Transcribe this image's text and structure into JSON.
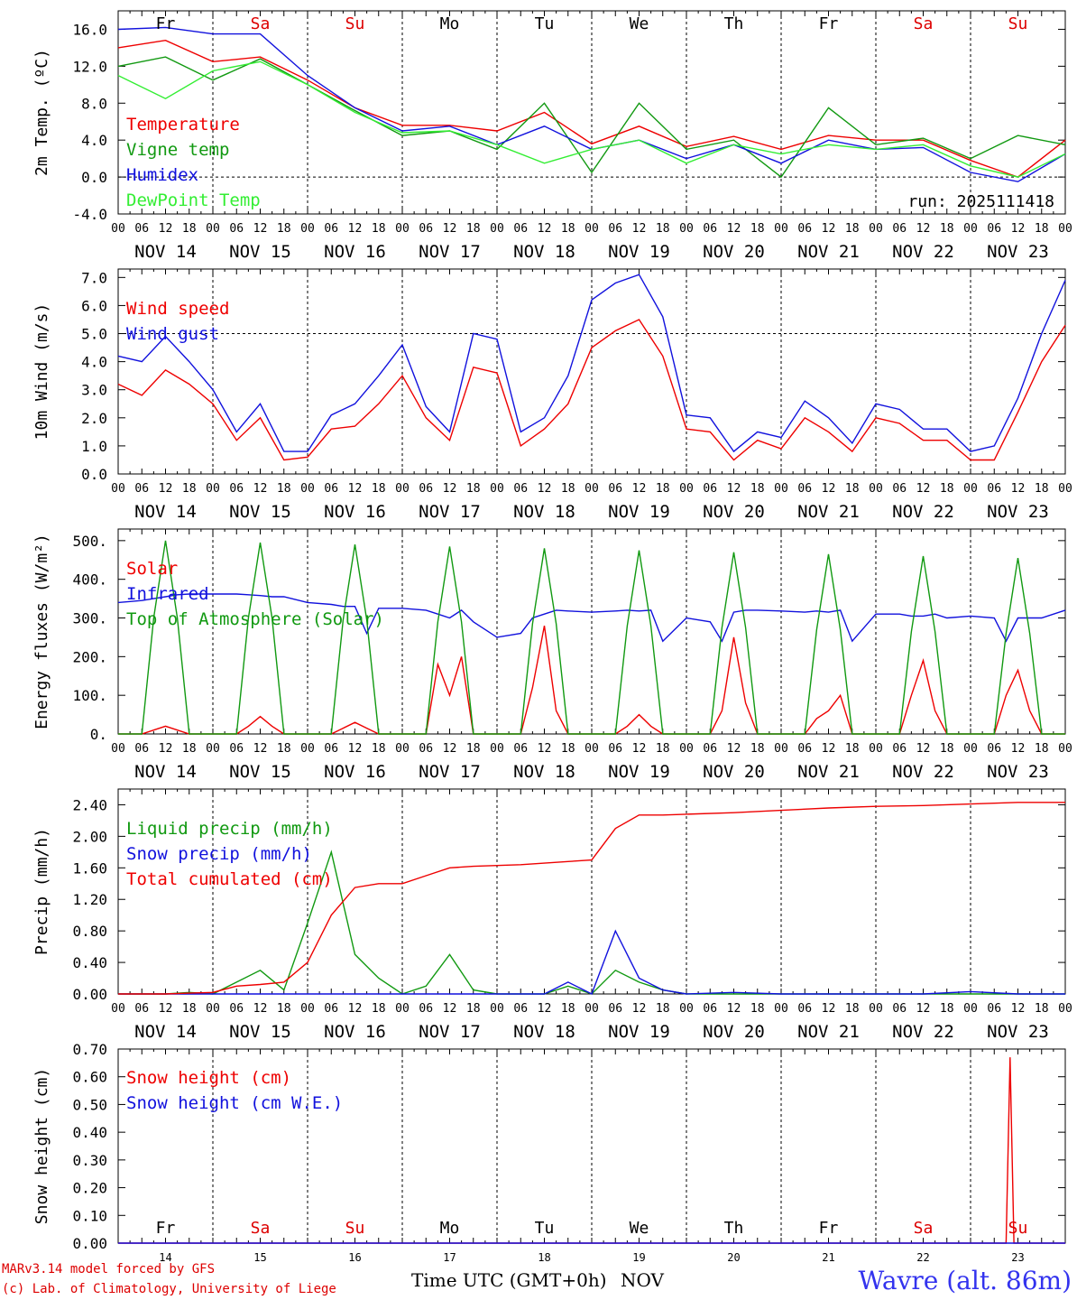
{
  "meta": {
    "run_label": "run: 2025111418",
    "station": "Wavre (alt. 86m)",
    "model_line": "MARv3.14 model forced by GFS",
    "lab_line": "(c) Lab. of Climatology, University of Liege",
    "time_label": "Time UTC (GMT+0h)",
    "month_label": "NOV",
    "hour_ticks": [
      "00",
      "06",
      "12",
      "18"
    ],
    "last_hour_tick": "00"
  },
  "days": [
    {
      "weekday": "Fr",
      "date": "NOV 14",
      "num": "14",
      "weekend": false
    },
    {
      "weekday": "Sa",
      "date": "NOV 15",
      "num": "15",
      "weekend": true
    },
    {
      "weekday": "Su",
      "date": "NOV 16",
      "num": "16",
      "weekend": true
    },
    {
      "weekday": "Mo",
      "date": "NOV 17",
      "num": "17",
      "weekend": false
    },
    {
      "weekday": "Tu",
      "date": "NOV 18",
      "num": "18",
      "weekend": false
    },
    {
      "weekday": "We",
      "date": "NOV 19",
      "num": "19",
      "weekend": false
    },
    {
      "weekday": "Th",
      "date": "NOV 20",
      "num": "20",
      "weekend": false
    },
    {
      "weekday": "Fr",
      "date": "NOV 21",
      "num": "21",
      "weekend": false
    },
    {
      "weekday": "Sa",
      "date": "NOV 22",
      "num": "22",
      "weekend": true
    },
    {
      "weekday": "Su",
      "date": "NOV 23",
      "num": "23",
      "weekend": true
    }
  ],
  "colors": {
    "weekday": "#000000",
    "weekend": "#dd0000",
    "red": "#ee0000",
    "green": "#119911",
    "blue": "#1111dd",
    "lightgreen": "#33ee33"
  },
  "chart_data": [
    {
      "id": "temperature",
      "type": "line",
      "ylabel": "2m Temp. (ºC)",
      "ylim": [
        -4,
        18
      ],
      "yticks": [
        "-4.0",
        "0.0",
        "4.0",
        "8.0",
        "12.0",
        "16.0"
      ],
      "ytick_values": [
        -4,
        0,
        4,
        8,
        12,
        16
      ],
      "dashed_y": 0,
      "show_weekdays": true,
      "show_run": true,
      "x_hours": [
        0,
        12,
        24,
        36,
        48,
        60,
        72,
        84,
        96,
        108,
        120,
        132,
        144,
        156,
        168,
        180,
        192,
        204,
        216,
        228,
        240
      ],
      "series": [
        {
          "name": "Temperature",
          "color": "red",
          "values": [
            14,
            14.8,
            12.5,
            13,
            10.5,
            7.5,
            5.6,
            5.6,
            5,
            7,
            3.6,
            5.5,
            3.3,
            4.4,
            3,
            4.5,
            4,
            4,
            1.8,
            0,
            4
          ]
        },
        {
          "name": "Vigne temp",
          "color": "green",
          "values": [
            12,
            13,
            10.5,
            12.8,
            10,
            7.2,
            4.5,
            5,
            3,
            8,
            0.5,
            8,
            3,
            4,
            0,
            7.5,
            3.5,
            4.2,
            2,
            4.5,
            3.5
          ]
        },
        {
          "name": "Humidex",
          "color": "blue",
          "values": [
            16,
            16.2,
            15.5,
            15.5,
            11,
            7.5,
            5,
            5.5,
            3.5,
            5.5,
            3,
            4,
            2,
            3.5,
            1.5,
            4,
            3,
            3.2,
            0.5,
            -0.5,
            2.5
          ]
        },
        {
          "name": "DewPoint Temp",
          "color": "lightgreen",
          "values": [
            11,
            8.5,
            11.5,
            12.5,
            10,
            7,
            4.8,
            5,
            3.5,
            1.5,
            3,
            4,
            1.5,
            3.5,
            2.5,
            3.5,
            3,
            3.5,
            1.2,
            0,
            2.5
          ]
        }
      ]
    },
    {
      "id": "wind",
      "type": "line",
      "ylabel": "10m Wind (m/s)",
      "ylim": [
        0,
        7.3
      ],
      "yticks": [
        "0.0",
        "1.0",
        "2.0",
        "3.0",
        "4.0",
        "5.0",
        "6.0",
        "7.0"
      ],
      "ytick_values": [
        0,
        1,
        2,
        3,
        4,
        5,
        6,
        7
      ],
      "dashed_y": 5,
      "show_weekdays": false,
      "show_run": false,
      "x_hours": [
        0,
        6,
        12,
        18,
        24,
        30,
        36,
        42,
        48,
        54,
        60,
        66,
        72,
        78,
        84,
        90,
        96,
        102,
        108,
        114,
        120,
        126,
        132,
        138,
        144,
        150,
        156,
        162,
        168,
        174,
        180,
        186,
        192,
        198,
        204,
        210,
        216,
        222,
        228,
        234,
        240
      ],
      "series": [
        {
          "name": "Wind speed",
          "color": "red",
          "values": [
            3.2,
            2.8,
            3.7,
            3.2,
            2.5,
            1.2,
            2,
            0.5,
            0.6,
            1.6,
            1.7,
            2.5,
            3.5,
            2,
            1.2,
            3.8,
            3.6,
            1,
            1.6,
            2.5,
            4.5,
            5.1,
            5.5,
            4.2,
            1.6,
            1.5,
            0.5,
            1.2,
            0.9,
            2,
            1.5,
            0.8,
            2,
            1.8,
            1.2,
            1.2,
            0.5,
            0.5,
            2.2,
            4,
            5.3
          ]
        },
        {
          "name": "Wind gust",
          "color": "blue",
          "values": [
            4.2,
            4,
            4.9,
            4,
            3,
            1.5,
            2.5,
            0.8,
            0.8,
            2.1,
            2.5,
            3.5,
            4.6,
            2.4,
            1.5,
            5,
            4.8,
            1.5,
            2,
            3.5,
            6.2,
            6.8,
            7.1,
            5.6,
            2.1,
            2,
            0.8,
            1.5,
            1.3,
            2.6,
            2,
            1.1,
            2.5,
            2.3,
            1.6,
            1.6,
            0.8,
            1,
            2.7,
            5,
            6.9
          ]
        }
      ]
    },
    {
      "id": "energy",
      "type": "line",
      "ylabel": "Energy fluxes (W/m²)",
      "ylim": [
        0,
        530
      ],
      "yticks": [
        "0.",
        "100.",
        "200.",
        "300.",
        "400.",
        "500."
      ],
      "ytick_values": [
        0,
        100,
        200,
        300,
        400,
        500
      ],
      "dashed_y": null,
      "show_weekdays": false,
      "show_run": false,
      "x_hours": [
        0,
        6,
        9,
        12,
        15,
        18,
        24,
        30,
        33,
        36,
        39,
        42,
        48,
        54,
        57,
        60,
        63,
        66,
        72,
        78,
        81,
        84,
        87,
        90,
        96,
        102,
        105,
        108,
        111,
        114,
        120,
        126,
        129,
        132,
        135,
        138,
        144,
        150,
        153,
        156,
        159,
        162,
        168,
        174,
        177,
        180,
        183,
        186,
        192,
        198,
        201,
        204,
        207,
        210,
        216,
        222,
        225,
        228,
        231,
        234,
        240
      ],
      "series": [
        {
          "name": "Solar",
          "color": "red",
          "values": [
            0,
            0,
            10,
            20,
            10,
            0,
            0,
            0,
            20,
            45,
            20,
            0,
            0,
            0,
            15,
            30,
            15,
            0,
            0,
            0,
            180,
            100,
            200,
            0,
            0,
            0,
            120,
            280,
            60,
            0,
            0,
            0,
            20,
            50,
            20,
            0,
            0,
            0,
            60,
            250,
            80,
            0,
            0,
            0,
            40,
            60,
            100,
            0,
            0,
            0,
            100,
            190,
            60,
            0,
            0,
            0,
            100,
            165,
            60,
            0,
            0
          ]
        },
        {
          "name": "Infrared",
          "color": "blue",
          "values": [
            340,
            345,
            350,
            355,
            360,
            362,
            362,
            362,
            360,
            358,
            355,
            355,
            340,
            335,
            330,
            330,
            260,
            325,
            325,
            320,
            310,
            300,
            320,
            290,
            250,
            260,
            300,
            310,
            320,
            318,
            315,
            318,
            320,
            318,
            320,
            240,
            300,
            290,
            240,
            315,
            320,
            320,
            318,
            315,
            318,
            315,
            320,
            240,
            310,
            310,
            305,
            305,
            310,
            300,
            305,
            300,
            240,
            300,
            300,
            300,
            320
          ]
        },
        {
          "name": "Top of Atmosphere (Solar)",
          "color": "green",
          "values": [
            0,
            0,
            300,
            500,
            300,
            0,
            0,
            0,
            300,
            495,
            300,
            0,
            0,
            0,
            295,
            490,
            295,
            0,
            0,
            0,
            290,
            485,
            290,
            0,
            0,
            0,
            285,
            480,
            285,
            0,
            0,
            0,
            280,
            475,
            280,
            0,
            0,
            0,
            275,
            470,
            275,
            0,
            0,
            0,
            270,
            465,
            270,
            0,
            0,
            0,
            265,
            460,
            265,
            0,
            0,
            0,
            260,
            455,
            260,
            0,
            0
          ]
        }
      ]
    },
    {
      "id": "precip",
      "type": "line",
      "ylabel": "Precip (mm/h)",
      "ylim": [
        0,
        2.6
      ],
      "yticks": [
        "0.00",
        "0.40",
        "0.80",
        "1.20",
        "1.60",
        "2.00",
        "2.40"
      ],
      "ytick_values": [
        0,
        0.4,
        0.8,
        1.2,
        1.6,
        2,
        2.4
      ],
      "dashed_y": null,
      "show_weekdays": false,
      "show_run": false,
      "x_hours": [
        0,
        12,
        18,
        24,
        30,
        36,
        42,
        48,
        54,
        60,
        66,
        72,
        78,
        84,
        90,
        96,
        102,
        108,
        114,
        120,
        126,
        132,
        138,
        144,
        156,
        168,
        180,
        192,
        204,
        216,
        228,
        240
      ],
      "series": [
        {
          "name": "Liquid precip (mm/h)",
          "color": "green",
          "values": [
            0,
            0,
            0.02,
            0,
            0.15,
            0.3,
            0.05,
            0.9,
            1.8,
            0.5,
            0.2,
            0,
            0.1,
            0.5,
            0.05,
            0,
            0,
            0,
            0.1,
            0,
            0.3,
            0.15,
            0.05,
            0,
            0,
            0,
            0,
            0,
            0,
            0,
            0,
            0
          ]
        },
        {
          "name": "Snow precip (mm/h)",
          "color": "blue",
          "values": [
            0,
            0,
            0,
            0,
            0,
            0,
            0,
            0,
            0,
            0,
            0,
            0,
            0,
            0,
            0,
            0,
            0,
            0,
            0.15,
            0,
            0.8,
            0.2,
            0.05,
            0,
            0.02,
            0,
            0,
            0,
            0,
            0.03,
            0,
            0
          ]
        },
        {
          "name": "Total cumulated (cm)",
          "color": "red",
          "values": [
            0,
            0,
            0.01,
            0.02,
            0.1,
            0.12,
            0.15,
            0.4,
            1.0,
            1.35,
            1.4,
            1.4,
            1.5,
            1.6,
            1.62,
            1.63,
            1.64,
            1.66,
            1.68,
            1.7,
            2.1,
            2.27,
            2.27,
            2.28,
            2.3,
            2.33,
            2.36,
            2.38,
            2.39,
            2.41,
            2.43,
            2.43
          ]
        }
      ]
    },
    {
      "id": "snow",
      "type": "line",
      "ylabel": "Snow height (cm)",
      "ylim": [
        0,
        0.7
      ],
      "yticks": [
        "0.00",
        "0.10",
        "0.20",
        "0.30",
        "0.40",
        "0.50",
        "0.60",
        "0.70"
      ],
      "ytick_values": [
        0,
        0.1,
        0.2,
        0.3,
        0.4,
        0.5,
        0.6,
        0.7
      ],
      "dashed_y": null,
      "show_weekdays": false,
      "show_run": false,
      "x_hours": [
        0,
        225,
        226,
        227,
        240
      ],
      "series": [
        {
          "name": "Snow height (cm)",
          "color": "red",
          "values": [
            0,
            0,
            0.67,
            0,
            0
          ]
        },
        {
          "name": "Snow height (cm W.E.)",
          "color": "blue",
          "values": [
            0,
            0,
            0,
            0,
            0
          ]
        }
      ]
    }
  ]
}
